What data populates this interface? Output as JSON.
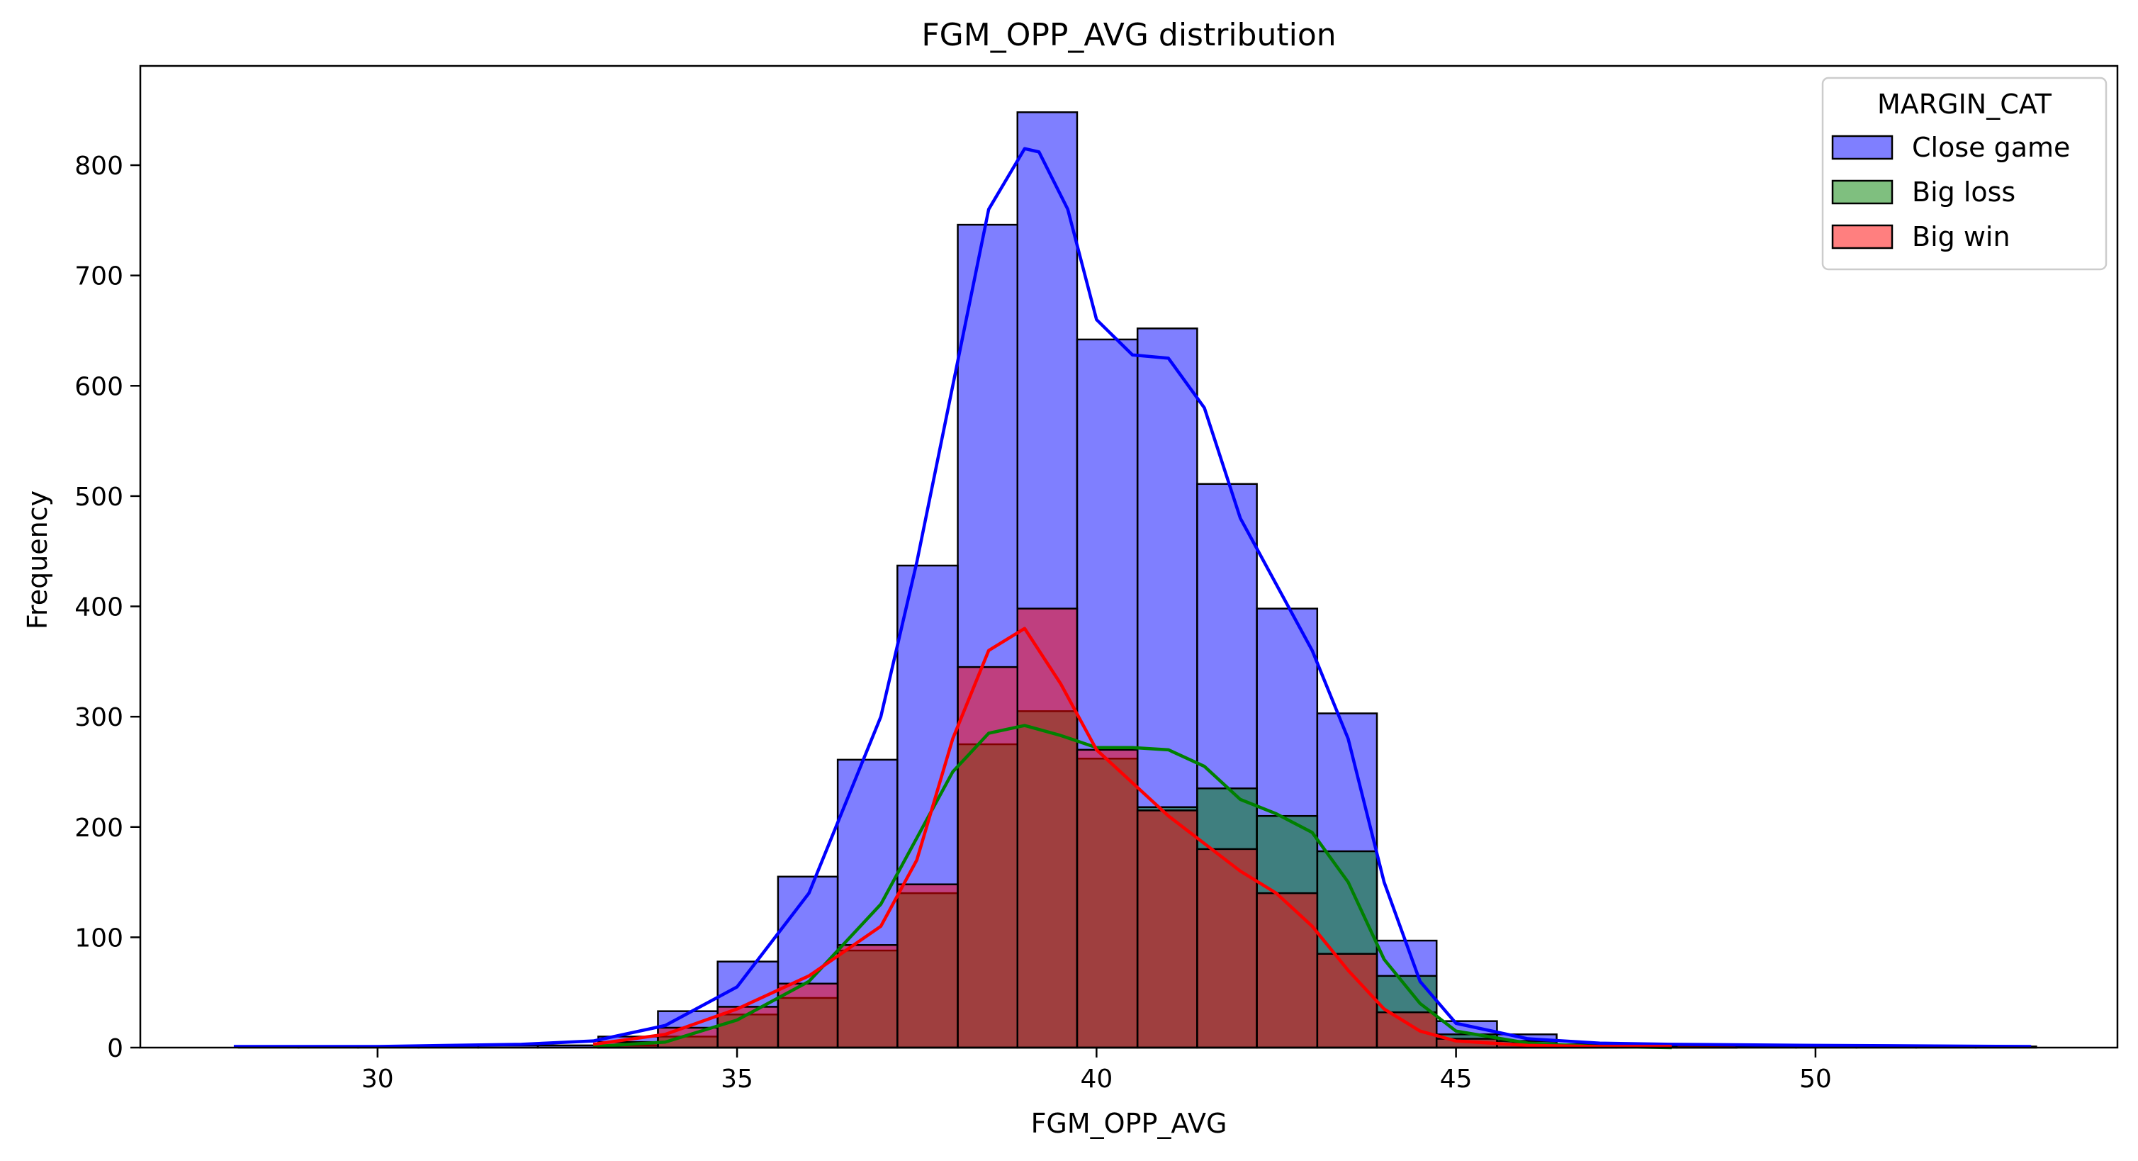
{
  "chart_data": {
    "type": "bar",
    "title": "FGM_OPP_AVG distribution",
    "xlabel": "FGM_OPP_AVG",
    "ylabel": "Frequency",
    "xlim": [
      26.7,
      54.2
    ],
    "ylim": [
      0,
      890
    ],
    "xticks": [
      30,
      35,
      40,
      45,
      50
    ],
    "yticks": [
      0,
      100,
      200,
      300,
      400,
      500,
      600,
      700,
      800
    ],
    "grid": false,
    "bin_edges": [
      28.07,
      28.9,
      29.73,
      30.57,
      31.4,
      32.23,
      33.07,
      33.9,
      34.73,
      35.57,
      36.4,
      37.23,
      38.07,
      38.9,
      39.73,
      40.57,
      41.4,
      42.23,
      43.07,
      43.9,
      44.73,
      45.57,
      46.4,
      47.23,
      48.07,
      48.9,
      49.73,
      50.57,
      51.4,
      52.23,
      53.07
    ],
    "legend": {
      "title": "MARGIN_CAT",
      "position": "top-right",
      "entries": [
        "Close game",
        "Big loss",
        "Big win"
      ]
    },
    "series": [
      {
        "name": "Close game",
        "color": "#0000ff",
        "fill": "rgba(0,0,255,0.5)",
        "values": [
          1,
          1,
          1,
          2,
          2,
          2,
          10,
          33,
          78,
          155,
          261,
          437,
          746,
          848,
          642,
          652,
          511,
          398,
          303,
          97,
          24,
          12,
          3,
          3,
          2,
          1,
          1,
          1,
          1,
          1
        ],
        "kde": [
          [
            28,
            1
          ],
          [
            30,
            1
          ],
          [
            31,
            2
          ],
          [
            32,
            3
          ],
          [
            33,
            6
          ],
          [
            34,
            20
          ],
          [
            35,
            55
          ],
          [
            36,
            140
          ],
          [
            37,
            300
          ],
          [
            37.5,
            440
          ],
          [
            38,
            600
          ],
          [
            38.5,
            760
          ],
          [
            39,
            815
          ],
          [
            39.2,
            812
          ],
          [
            39.6,
            760
          ],
          [
            40,
            660
          ],
          [
            40.5,
            628
          ],
          [
            41,
            625
          ],
          [
            41.5,
            580
          ],
          [
            42,
            480
          ],
          [
            42.5,
            420
          ],
          [
            43,
            360
          ],
          [
            43.5,
            280
          ],
          [
            44,
            150
          ],
          [
            44.5,
            60
          ],
          [
            45,
            22
          ],
          [
            46,
            8
          ],
          [
            47,
            4
          ],
          [
            48,
            3
          ],
          [
            50,
            2
          ],
          [
            53,
            1
          ]
        ]
      },
      {
        "name": "Big loss",
        "color": "#008000",
        "fill": "rgba(0,128,0,0.5)",
        "values": [
          0,
          0,
          0,
          0,
          0,
          0,
          2,
          10,
          30,
          45,
          88,
          140,
          275,
          305,
          262,
          218,
          235,
          210,
          178,
          65,
          12,
          6,
          2,
          1,
          1,
          0,
          0,
          0,
          0,
          0
        ],
        "kde": [
          [
            33,
            1
          ],
          [
            34,
            5
          ],
          [
            35,
            25
          ],
          [
            36,
            60
          ],
          [
            37,
            130
          ],
          [
            37.5,
            190
          ],
          [
            38,
            250
          ],
          [
            38.5,
            285
          ],
          [
            39,
            292
          ],
          [
            39.5,
            283
          ],
          [
            40,
            272
          ],
          [
            40.5,
            272
          ],
          [
            41,
            270
          ],
          [
            41.5,
            255
          ],
          [
            42,
            225
          ],
          [
            42.5,
            212
          ],
          [
            43,
            195
          ],
          [
            43.5,
            150
          ],
          [
            44,
            80
          ],
          [
            44.5,
            40
          ],
          [
            45,
            15
          ],
          [
            46,
            4
          ],
          [
            47,
            1
          ],
          [
            48,
            0
          ]
        ]
      },
      {
        "name": "Big win",
        "color": "#ff0000",
        "fill": "rgba(255,0,0,0.5)",
        "values": [
          0,
          0,
          0,
          0,
          0,
          0,
          5,
          18,
          37,
          58,
          93,
          148,
          345,
          398,
          270,
          215,
          180,
          140,
          85,
          32,
          8,
          4,
          1,
          1,
          3,
          0,
          0,
          0,
          0,
          0
        ],
        "kde": [
          [
            33,
            3
          ],
          [
            34,
            12
          ],
          [
            35,
            35
          ],
          [
            36,
            65
          ],
          [
            37,
            110
          ],
          [
            37.5,
            170
          ],
          [
            38,
            280
          ],
          [
            38.5,
            360
          ],
          [
            39,
            380
          ],
          [
            39.5,
            330
          ],
          [
            40,
            270
          ],
          [
            40.5,
            240
          ],
          [
            41,
            210
          ],
          [
            41.5,
            185
          ],
          [
            42,
            160
          ],
          [
            42.5,
            140
          ],
          [
            43,
            110
          ],
          [
            43.5,
            70
          ],
          [
            44,
            35
          ],
          [
            44.5,
            15
          ],
          [
            45,
            6
          ],
          [
            46,
            2
          ],
          [
            47,
            1
          ],
          [
            48,
            1
          ]
        ]
      }
    ]
  }
}
